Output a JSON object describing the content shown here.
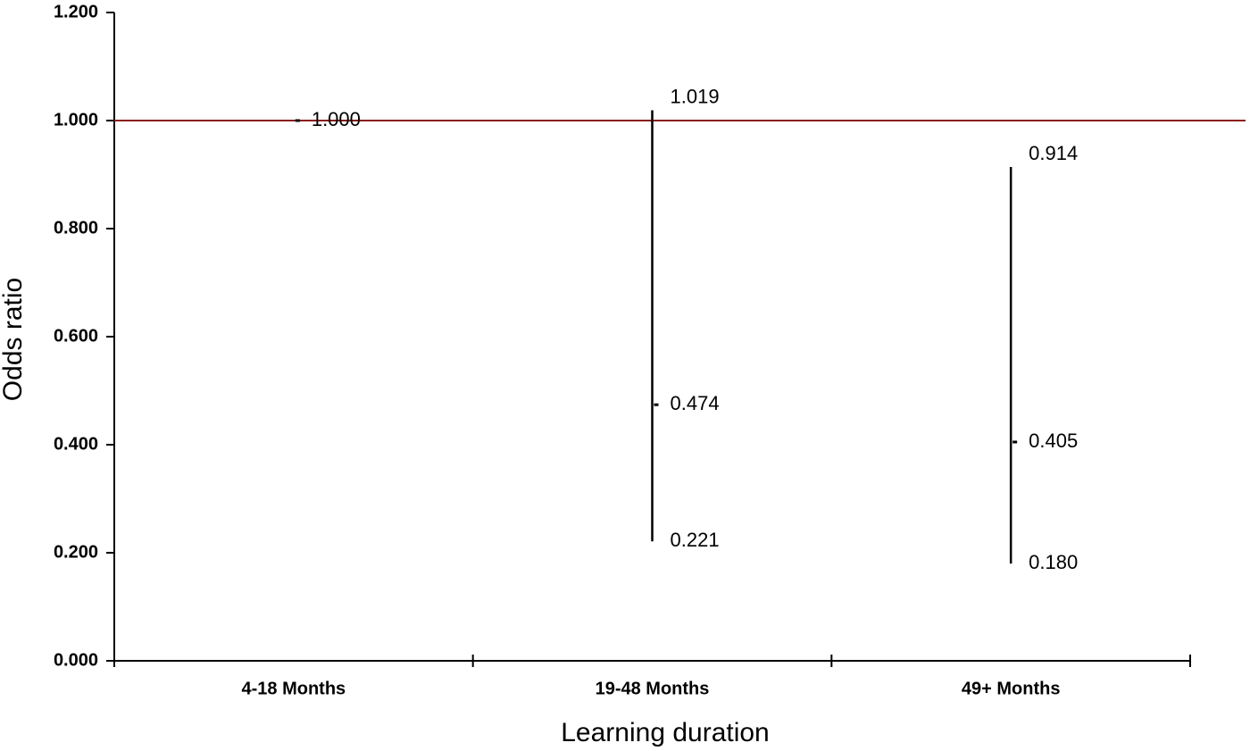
{
  "chart_data": {
    "type": "hilo",
    "x_label": "Learning duration",
    "y_label": "Odds ratio",
    "categories": [
      "4-18 Months",
      "19-48 Months",
      "49+ Months"
    ],
    "values": [
      1.0,
      0.474,
      0.405
    ],
    "value_labels": [
      "1.000",
      "0.474",
      "0.405"
    ],
    "low": [
      null,
      0.221,
      0.18
    ],
    "low_labels": [
      null,
      "0.221",
      "0.180"
    ],
    "high": [
      null,
      1.019,
      0.914
    ],
    "high_labels": [
      null,
      "1.019",
      "0.914"
    ],
    "color": "#000000",
    "reference_line": {
      "value": 1.0,
      "color": "#8b1a1a"
    },
    "ylim": [
      0,
      1.2
    ],
    "yticks": [
      {
        "value": 0,
        "label": "0.000"
      },
      {
        "value": 0.2,
        "label": "0.200"
      },
      {
        "value": 0.4,
        "label": "0.400"
      },
      {
        "value": 0.6,
        "label": "0.600"
      },
      {
        "value": 0.8,
        "label": "0.800"
      },
      {
        "value": 1.0,
        "label": "1.000"
      },
      {
        "value": 1.2,
        "label": "1.200"
      }
    ]
  }
}
